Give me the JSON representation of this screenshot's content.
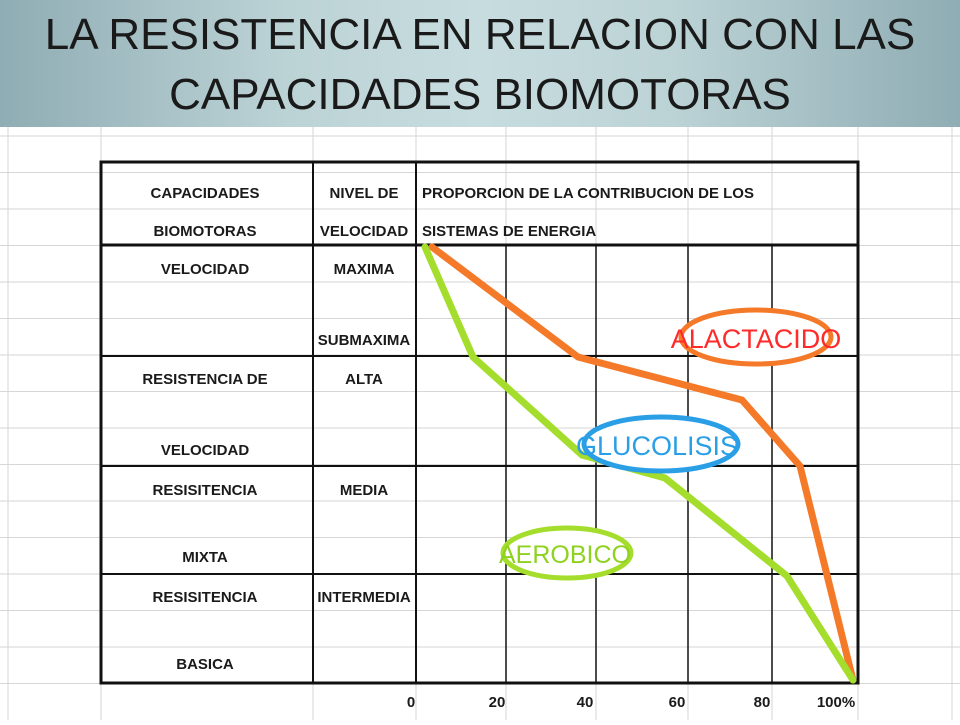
{
  "title": {
    "line1": "LA RESISTENCIA  EN RELACION CON LAS",
    "line2": "CAPACIDADES BIOMOTORAS"
  },
  "table": {
    "header": {
      "col1_line1": "CAPACIDADES",
      "col1_line2": "BIOMOTORAS",
      "col2_line1": "NIVEL DE",
      "col2_line2": "VELOCIDAD",
      "col3_line1": "PROPORCION DE LA CONTRIBUCION DE LOS",
      "col3_line2": "SISTEMAS DE ENERGIA"
    },
    "rows": [
      {
        "capacity_top": "VELOCIDAD",
        "capacity_bottom": "",
        "level_top": "MAXIMA",
        "level_bottom": "SUBMAXIMA"
      },
      {
        "capacity_top": "RESISTENCIA DE",
        "capacity_bottom": "VELOCIDAD",
        "level_top": "ALTA",
        "level_bottom": ""
      },
      {
        "capacity_top": "RESISITENCIA",
        "capacity_bottom": "MIXTA",
        "level_top": "MEDIA",
        "level_bottom": ""
      },
      {
        "capacity_top": "RESISITENCIA",
        "capacity_bottom": "BASICA",
        "level_top": "INTERMEDIA",
        "level_bottom": ""
      }
    ],
    "axis_ticks": [
      "0",
      "20",
      "40",
      "60",
      "80",
      "100%"
    ]
  },
  "lines": {
    "alactacido": {
      "label": "ALACTACIDO",
      "color": "#f47a2a"
    },
    "glucolisis": {
      "label": "GLUCOLISIS",
      "color": "#2a9fe6"
    },
    "aerobico": {
      "label": "AEROBICO",
      "color": "#9fdc2a"
    }
  },
  "colors": {
    "grid": "#d6d6d6",
    "border": "#111111",
    "text": "#1a1a1a",
    "orange": "#f47a2a",
    "green": "#a4dd2c",
    "blue": "#2a9fe6"
  }
}
